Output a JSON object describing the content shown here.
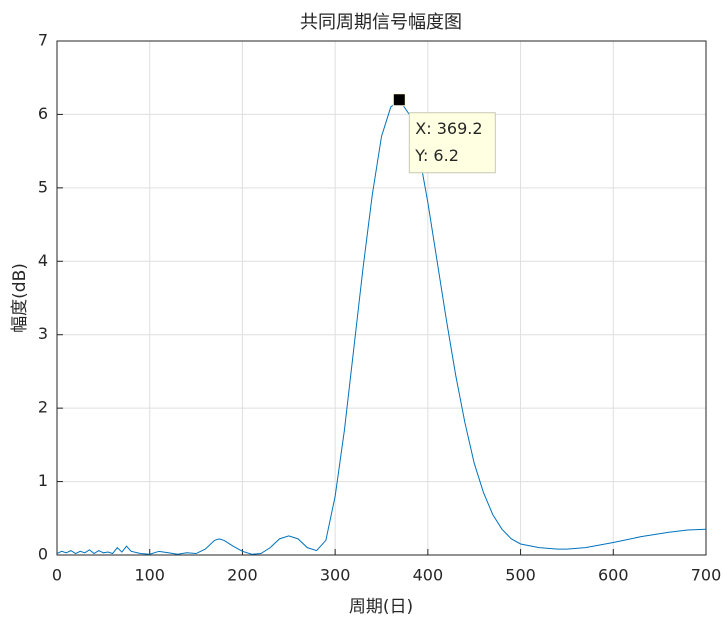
{
  "chart_data": {
    "type": "line",
    "title": "共同周期信号幅度图",
    "xlabel": "周期(日)",
    "ylabel": "幅度(dB)",
    "x": [
      0,
      5,
      10,
      15,
      20,
      25,
      30,
      35,
      40,
      45,
      50,
      55,
      60,
      65,
      70,
      75,
      80,
      90,
      100,
      110,
      120,
      130,
      140,
      150,
      160,
      170,
      175,
      180,
      190,
      200,
      210,
      220,
      230,
      240,
      250,
      260,
      270,
      280,
      290,
      300,
      310,
      320,
      330,
      340,
      350,
      360,
      369.2,
      380,
      390,
      400,
      410,
      420,
      430,
      440,
      450,
      460,
      470,
      480,
      490,
      500,
      520,
      540,
      550,
      570,
      600,
      630,
      660,
      680,
      700
    ],
    "values": [
      0.02,
      0.05,
      0.03,
      0.06,
      0.02,
      0.05,
      0.03,
      0.07,
      0.02,
      0.06,
      0.03,
      0.04,
      0.02,
      0.1,
      0.04,
      0.12,
      0.05,
      0.02,
      0.01,
      0.05,
      0.03,
      0.01,
      0.03,
      0.02,
      0.08,
      0.2,
      0.22,
      0.2,
      0.12,
      0.05,
      0.01,
      0.02,
      0.1,
      0.22,
      0.26,
      0.22,
      0.1,
      0.06,
      0.2,
      0.8,
      1.7,
      2.8,
      3.9,
      4.9,
      5.7,
      6.1,
      6.2,
      6.0,
      5.5,
      4.8,
      4.0,
      3.2,
      2.45,
      1.8,
      1.25,
      0.85,
      0.55,
      0.35,
      0.22,
      0.15,
      0.1,
      0.08,
      0.08,
      0.1,
      0.17,
      0.25,
      0.31,
      0.34,
      0.35
    ],
    "color": "#0072bd",
    "xlim": [
      0,
      700
    ],
    "xticks": [
      0,
      100,
      200,
      300,
      400,
      500,
      600,
      700
    ],
    "ylim": [
      0,
      7
    ],
    "yticks": [
      0,
      1,
      2,
      3,
      4,
      5,
      6,
      7
    ],
    "grid": true,
    "datatip": {
      "x": 369.2,
      "y": 6.2,
      "labels": [
        "X: 369.2",
        "Y: 6.2"
      ]
    }
  }
}
